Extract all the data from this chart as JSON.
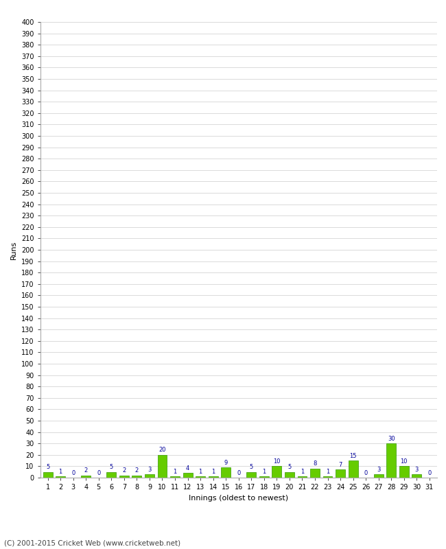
{
  "values": [
    5,
    1,
    0,
    2,
    0,
    5,
    2,
    2,
    3,
    20,
    1,
    4,
    1,
    1,
    9,
    0,
    5,
    1,
    10,
    5,
    1,
    8,
    1,
    7,
    15,
    0,
    3,
    30,
    10,
    3,
    0
  ],
  "innings": [
    1,
    2,
    3,
    4,
    5,
    6,
    7,
    8,
    9,
    10,
    11,
    12,
    13,
    14,
    15,
    16,
    17,
    18,
    19,
    20,
    21,
    22,
    23,
    24,
    25,
    26,
    27,
    28,
    29,
    30,
    31
  ],
  "bar_color": "#66cc00",
  "bar_edge_color": "#339900",
  "label_color": "#000099",
  "xlabel": "Innings (oldest to newest)",
  "ylabel": "Runs",
  "ylim": [
    0,
    400
  ],
  "background_color": "#ffffff",
  "grid_color": "#cccccc",
  "footer": "(C) 2001-2015 Cricket Web (www.cricketweb.net)"
}
